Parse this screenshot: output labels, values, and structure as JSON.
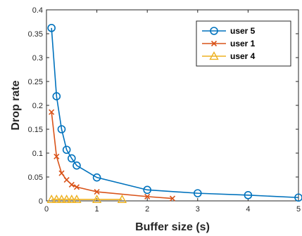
{
  "chart_data": {
    "type": "line",
    "title": "",
    "xlabel": "Buffer size (s)",
    "ylabel": "Drop rate",
    "xlim": [
      0,
      5
    ],
    "ylim": [
      0,
      0.4
    ],
    "xticks": [
      "0",
      "1",
      "2",
      "3",
      "4",
      "5"
    ],
    "yticks": [
      "0",
      "0.05",
      "0.1",
      "0.15",
      "0.2",
      "0.25",
      "0.3",
      "0.35",
      "0.4"
    ],
    "grid": false,
    "legend_position": "top-right",
    "series": [
      {
        "name": "user 5",
        "color": "#0072BD",
        "marker": "circle",
        "x": [
          0.1,
          0.2,
          0.3,
          0.4,
          0.5,
          0.6,
          1.0,
          2.0,
          3.0,
          4.0,
          5.0
        ],
        "y": [
          0.362,
          0.219,
          0.15,
          0.107,
          0.089,
          0.074,
          0.049,
          0.023,
          0.016,
          0.012,
          0.007
        ]
      },
      {
        "name": "user 1",
        "color": "#D95319",
        "marker": "cross",
        "x": [
          0.1,
          0.2,
          0.3,
          0.4,
          0.5,
          0.6,
          1.0,
          2.0,
          2.5
        ],
        "y": [
          0.186,
          0.093,
          0.058,
          0.044,
          0.034,
          0.029,
          0.019,
          0.009,
          0.005
        ]
      },
      {
        "name": "user 4",
        "color": "#EDB120",
        "marker": "triangle",
        "x": [
          0.1,
          0.2,
          0.3,
          0.4,
          0.5,
          0.6,
          1.0,
          1.5
        ],
        "y": [
          0.003,
          0.003,
          0.003,
          0.003,
          0.003,
          0.003,
          0.003,
          0.003
        ]
      }
    ]
  }
}
